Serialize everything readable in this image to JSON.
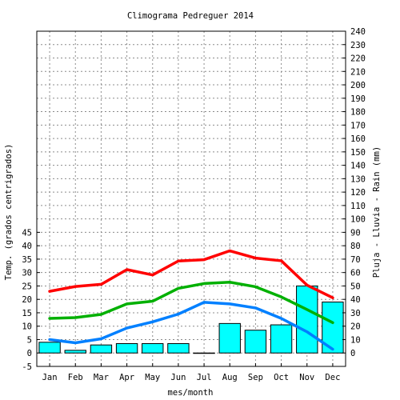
{
  "chart_data": {
    "type": "bar",
    "title": "Climograma Pedreguer 2014",
    "xlabel": "mes/month",
    "ylabel_left": "Temp. (grados centrigrados)",
    "ylabel_right": "Pluja - Lluvia - Rain (mm)",
    "categories": [
      "Jan",
      "Feb",
      "Mar",
      "Apr",
      "May",
      "Jun",
      "Jul",
      "Aug",
      "Sep",
      "Oct",
      "Nov",
      "Dec"
    ],
    "left_axis": {
      "min": -5,
      "max": 45,
      "step": 5,
      "ticks": [
        -5,
        0,
        5,
        10,
        15,
        20,
        25,
        30,
        35,
        40,
        45
      ]
    },
    "right_axis": {
      "min": -10,
      "max": 240,
      "step": 10
    },
    "grid": true,
    "rain": {
      "values": [
        8,
        2,
        6,
        7,
        7,
        7,
        0,
        22,
        17,
        21,
        50,
        38
      ],
      "color": "#00ffff"
    },
    "temperature_series": [
      {
        "values": [
          23,
          24.8,
          25.6,
          31.1,
          29.1,
          34.3,
          34.8,
          38.1,
          35.4,
          34.4,
          25.3,
          20.6
        ],
        "color": "#ff0000"
      },
      {
        "values": [
          12.9,
          13.2,
          14.4,
          18.3,
          19.3,
          24.1,
          25.9,
          26.4,
          24.7,
          20.9,
          16.2,
          11.3
        ],
        "color": "#00b000"
      },
      {
        "values": [
          5,
          3.8,
          5.3,
          9.3,
          11.6,
          14.5,
          18.9,
          18.3,
          16.8,
          12.9,
          7.9,
          1.4
        ],
        "color": "#0080ff"
      }
    ]
  }
}
